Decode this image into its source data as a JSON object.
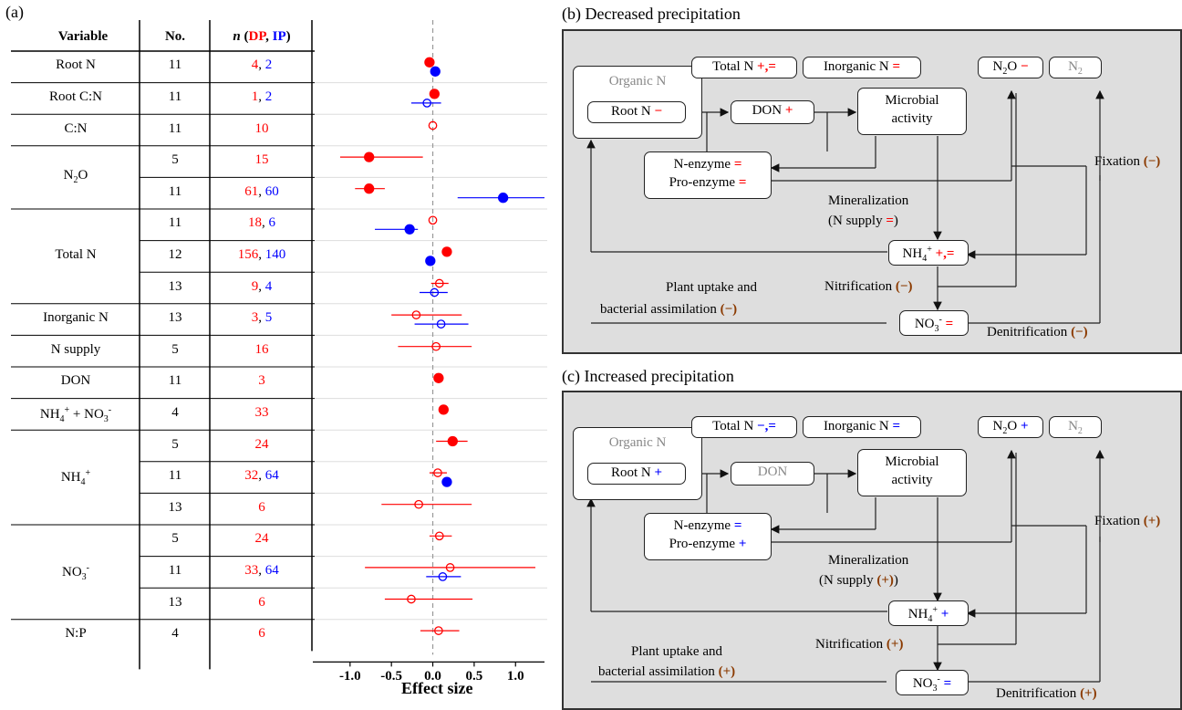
{
  "panel_a": {
    "label": "(a)",
    "headers": {
      "variable": "Variable",
      "no": "No.",
      "n": "n",
      "dp": "DP",
      "ip": "IP"
    },
    "rows": [
      {
        "variable": "Root N",
        "no": "11",
        "n_dp": "4",
        "n_ip": "2"
      },
      {
        "variable": "Root C:N",
        "no": "11",
        "n_dp": "1",
        "n_ip": "2"
      },
      {
        "variable": "C:N",
        "no": "11",
        "n_dp": "10",
        "n_ip": ""
      },
      {
        "variable": "N2O",
        "no": "5",
        "n_dp": "15",
        "n_ip": ""
      },
      {
        "variable": "",
        "no": "11",
        "n_dp": "61",
        "n_ip": "60"
      },
      {
        "variable": "Total N",
        "no": "11",
        "n_dp": "18",
        "n_ip": "6"
      },
      {
        "variable": "",
        "no": "12",
        "n_dp": "156",
        "n_ip": "140"
      },
      {
        "variable": "",
        "no": "13",
        "n_dp": "9",
        "n_ip": "4"
      },
      {
        "variable": "Inorganic N",
        "no": "13",
        "n_dp": "3",
        "n_ip": "5"
      },
      {
        "variable": "N supply",
        "no": "5",
        "n_dp": "16",
        "n_ip": ""
      },
      {
        "variable": "DON",
        "no": "11",
        "n_dp": "3",
        "n_ip": ""
      },
      {
        "variable": "NH4+ + NO3-",
        "no": "4",
        "n_dp": "33",
        "n_ip": ""
      },
      {
        "variable": "NH4+",
        "no": "5",
        "n_dp": "24",
        "n_ip": ""
      },
      {
        "variable": "",
        "no": "11",
        "n_dp": "32",
        "n_ip": "64"
      },
      {
        "variable": "",
        "no": "13",
        "n_dp": "6",
        "n_ip": ""
      },
      {
        "variable": "NO3-",
        "no": "5",
        "n_dp": "24",
        "n_ip": ""
      },
      {
        "variable": "",
        "no": "11",
        "n_dp": "33",
        "n_ip": "64"
      },
      {
        "variable": "",
        "no": "13",
        "n_dp": "6",
        "n_ip": ""
      },
      {
        "variable": "N:P",
        "no": "4",
        "n_dp": "6",
        "n_ip": ""
      }
    ]
  },
  "chart_data": {
    "type": "scatter",
    "xlabel": "Effect size",
    "xticks": [
      "-1.0",
      "-0.5",
      "0.0",
      "0.5",
      "1.0"
    ],
    "xlim": [
      -1.45,
      1.35
    ],
    "colors": {
      "DP": "#ff0000",
      "IP": "#0000ff"
    },
    "series": [
      {
        "name": "DP",
        "points": [
          {
            "row": 0,
            "x": -0.04,
            "lo": null,
            "hi": null,
            "filled": true
          },
          {
            "row": 1,
            "x": 0.02,
            "lo": null,
            "hi": null,
            "filled": true
          },
          {
            "row": 2,
            "x": 0.0,
            "lo": null,
            "hi": null,
            "filled": false
          },
          {
            "row": 3,
            "x": -0.77,
            "lo": -1.12,
            "hi": -0.12,
            "filled": true
          },
          {
            "row": 4,
            "x": -0.77,
            "lo": -0.94,
            "hi": -0.58,
            "filled": true
          },
          {
            "row": 5,
            "x": 0.0,
            "lo": null,
            "hi": null,
            "filled": false
          },
          {
            "row": 6,
            "x": 0.17,
            "lo": null,
            "hi": null,
            "filled": true
          },
          {
            "row": 7,
            "x": 0.08,
            "lo": -0.02,
            "hi": 0.19,
            "filled": false
          },
          {
            "row": 8,
            "x": -0.2,
            "lo": -0.5,
            "hi": 0.35,
            "filled": false
          },
          {
            "row": 9,
            "x": 0.04,
            "lo": -0.42,
            "hi": 0.47,
            "filled": false
          },
          {
            "row": 10,
            "x": 0.07,
            "lo": null,
            "hi": null,
            "filled": true
          },
          {
            "row": 11,
            "x": 0.13,
            "lo": null,
            "hi": null,
            "filled": true
          },
          {
            "row": 12,
            "x": 0.24,
            "lo": 0.04,
            "hi": 0.42,
            "filled": true
          },
          {
            "row": 13,
            "x": 0.06,
            "lo": -0.04,
            "hi": 0.17,
            "filled": false
          },
          {
            "row": 14,
            "x": -0.17,
            "lo": -0.62,
            "hi": 0.47,
            "filled": false
          },
          {
            "row": 15,
            "x": 0.08,
            "lo": -0.04,
            "hi": 0.23,
            "filled": false
          },
          {
            "row": 16,
            "x": 0.21,
            "lo": -0.82,
            "hi": 1.24,
            "filled": false
          },
          {
            "row": 17,
            "x": -0.26,
            "lo": -0.58,
            "hi": 0.48,
            "filled": false
          },
          {
            "row": 18,
            "x": 0.07,
            "lo": -0.15,
            "hi": 0.32,
            "filled": false
          }
        ]
      },
      {
        "name": "IP",
        "points": [
          {
            "row": 0,
            "x": 0.03,
            "lo": null,
            "hi": null,
            "filled": true
          },
          {
            "row": 1,
            "x": -0.07,
            "lo": -0.26,
            "hi": 0.1,
            "filled": false
          },
          {
            "row": 4,
            "x": 0.85,
            "lo": 0.3,
            "hi": 1.35,
            "filled": true
          },
          {
            "row": 5,
            "x": -0.28,
            "lo": -0.7,
            "hi": -0.18,
            "filled": true
          },
          {
            "row": 6,
            "x": -0.03,
            "lo": null,
            "hi": null,
            "filled": true
          },
          {
            "row": 7,
            "x": 0.02,
            "lo": -0.16,
            "hi": 0.18,
            "filled": false
          },
          {
            "row": 8,
            "x": 0.1,
            "lo": -0.22,
            "hi": 0.43,
            "filled": false
          },
          {
            "row": 13,
            "x": 0.17,
            "lo": null,
            "hi": null,
            "filled": true
          },
          {
            "row": 16,
            "x": 0.12,
            "lo": -0.08,
            "hi": 0.34,
            "filled": false
          }
        ]
      }
    ]
  },
  "panel_b": {
    "title": "(b) Decreased precipitation",
    "organic_n": "Organic N",
    "root_n": "Root N",
    "root_n_sign": "−",
    "total_n": "Total N",
    "total_n_sign": "+,=",
    "inorganic_n": "Inorganic N",
    "inorganic_n_sign": "=",
    "n2o_sign": "−",
    "don": "DON",
    "don_sign": "+",
    "microbial": "Microbial activity",
    "nenzyme": "N-enzyme",
    "nenzyme_sign": "=",
    "proenzyme": "Pro-enzyme",
    "proenzyme_sign": "=",
    "fixation": "Fixation",
    "fixation_sign": "(−)",
    "mineralization": "Mineralization",
    "nsupply": "(N supply",
    "nsupply_sign": "=",
    "nsupply_close": ")",
    "nh4_sign": "+,=",
    "nitrification": "Nitrification",
    "nitrification_sign": "(−)",
    "plant_uptake": "Plant uptake and",
    "bact_assim": "bacterial assimilation",
    "bact_sign": "(−)",
    "no3_sign": "=",
    "denitrification": "Denitrification",
    "denit_sign": "(−)"
  },
  "panel_c": {
    "title": "(c) Increased precipitation",
    "organic_n": "Organic N",
    "root_n": "Root N",
    "root_n_sign": "+",
    "total_n": "Total N",
    "total_n_sign": "−,=",
    "inorganic_n": "Inorganic N",
    "inorganic_n_sign": "=",
    "n2o_sign": "+",
    "don": "DON",
    "don_sign": "",
    "microbial": "Microbial activity",
    "nenzyme": "N-enzyme",
    "nenzyme_sign": "=",
    "proenzyme": "Pro-enzyme",
    "proenzyme_sign": "+",
    "fixation": "Fixation",
    "fixation_sign": "(+)",
    "mineralization": "Mineralization",
    "nsupply": "(N supply",
    "nsupply_sign": "(+)",
    "nsupply_close": ")",
    "nh4_sign": "+",
    "nitrification": "Nitrification",
    "nitrification_sign": "(+)",
    "plant_uptake": "Plant uptake and",
    "bact_assim": "bacterial assimilation",
    "bact_sign": "(+)",
    "no3_sign": "=",
    "denitrification": "Denitrification",
    "denit_sign": "(+)"
  }
}
